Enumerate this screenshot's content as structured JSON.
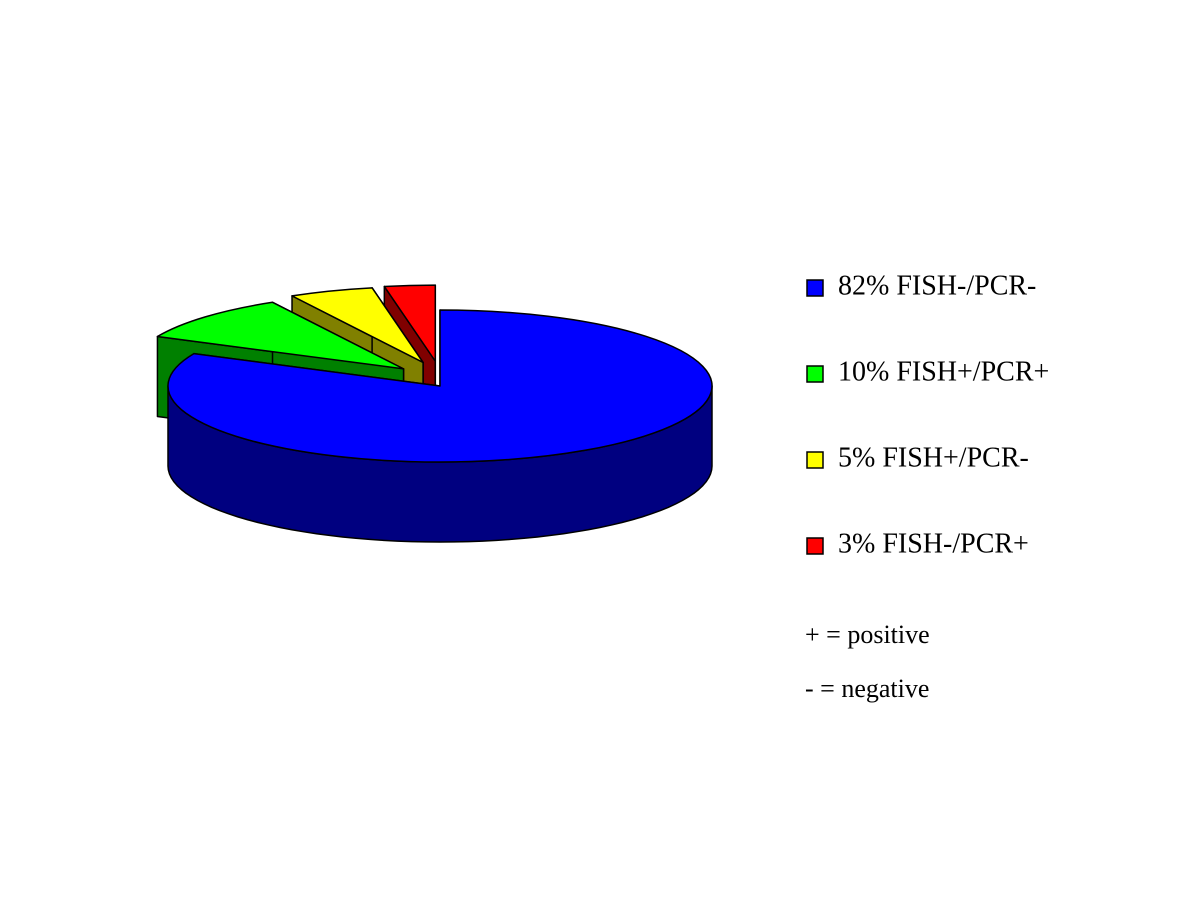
{
  "chart_data": {
    "type": "pie3d",
    "categories": [
      "82% FISH-/PCR-",
      "10% FISH+/PCR+",
      "5% FISH+/PCR-",
      "3% FISH-/PCR+"
    ],
    "values": [
      82,
      10,
      5,
      3
    ],
    "colors": [
      "#0000ff",
      "#00ff00",
      "#ffff00",
      "#ff0000"
    ],
    "legend": "right",
    "annotations": [
      "+ = positive",
      "- = negative"
    ]
  }
}
